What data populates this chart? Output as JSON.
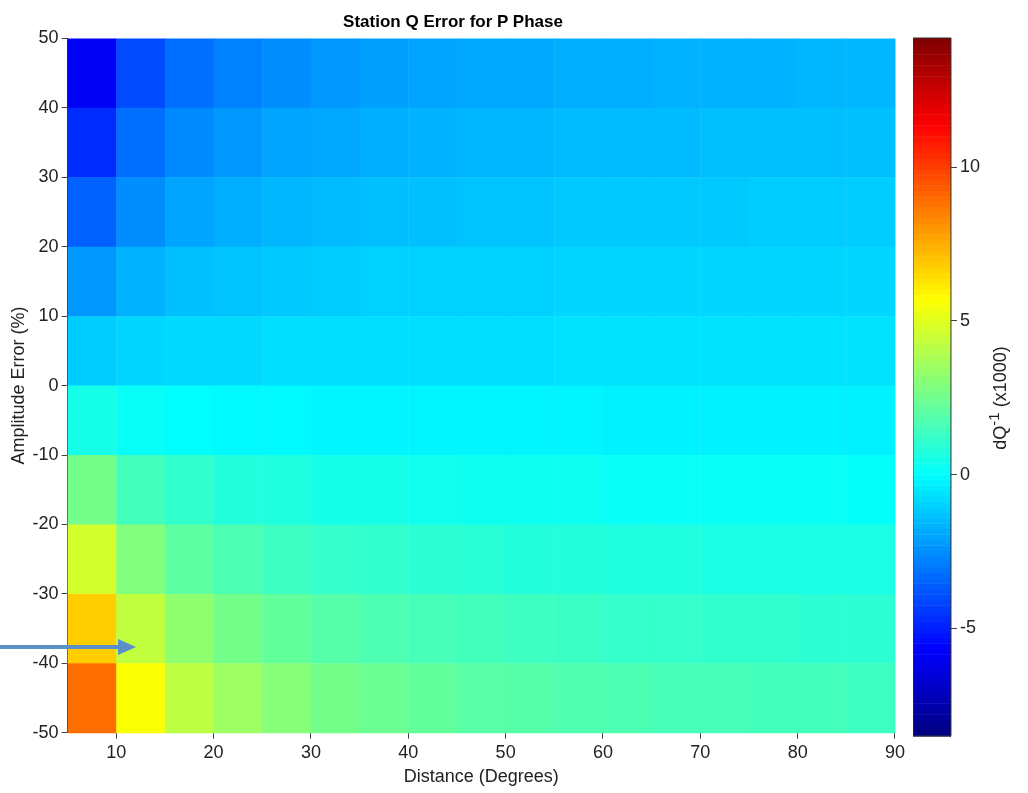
{
  "chart_data": {
    "type": "heatmap",
    "title": "Station Q Error for P Phase",
    "xlabel": "Distance (Degrees)",
    "ylabel": "Amplitude Error (%)",
    "clabel": "dQ$^{-1}$ (x1000)",
    "xlim": [
      5,
      90
    ],
    "xticks": [
      10,
      20,
      30,
      40,
      50,
      60,
      70,
      80,
      90
    ],
    "ylim": [
      -50,
      50
    ],
    "yticks": [
      -50,
      -40,
      -30,
      -20,
      -10,
      0,
      10,
      20,
      30,
      40,
      50
    ],
    "clim": [
      -8.5,
      14.2
    ],
    "cticks": [
      -5,
      0,
      5,
      10
    ],
    "grid": false,
    "cells": [
      [
        -5.9,
        -4.0,
        -3.2,
        -2.8,
        -2.5,
        -2.3,
        -2.1,
        -2.0,
        -1.9,
        -1.9,
        -1.8,
        -1.8,
        -1.7,
        -1.7,
        -1.7,
        -1.6,
        -1.6
      ],
      [
        -4.7,
        -3.2,
        -2.6,
        -2.3,
        -2.0,
        -1.9,
        -1.8,
        -1.7,
        -1.6,
        -1.6,
        -1.5,
        -1.5,
        -1.5,
        -1.4,
        -1.4,
        -1.4,
        -1.4
      ],
      [
        -3.5,
        -2.5,
        -2.0,
        -1.8,
        -1.6,
        -1.5,
        -1.4,
        -1.4,
        -1.3,
        -1.3,
        -1.2,
        -1.2,
        -1.2,
        -1.2,
        -1.1,
        -1.1,
        -1.1
      ],
      [
        -2.3,
        -1.7,
        -1.4,
        -1.3,
        -1.2,
        -1.1,
        -1.0,
        -1.0,
        -1.0,
        -1.0,
        -0.9,
        -0.9,
        -0.9,
        -0.9,
        -0.9,
        -0.9,
        -0.9
      ],
      [
        -1.1,
        -0.9,
        -0.8,
        -0.8,
        -0.7,
        -0.7,
        -0.7,
        -0.7,
        -0.7,
        -0.7,
        -0.6,
        -0.6,
        -0.6,
        -0.6,
        -0.6,
        -0.6,
        -0.6
      ],
      [
        0.5,
        0.2,
        0.0,
        -0.1,
        -0.1,
        -0.2,
        -0.2,
        -0.2,
        -0.2,
        -0.2,
        -0.2,
        -0.3,
        -0.3,
        -0.3,
        -0.3,
        -0.3,
        -0.3
      ],
      [
        2.6,
        1.5,
        1.1,
        0.8,
        0.7,
        0.5,
        0.5,
        0.4,
        0.3,
        0.3,
        0.3,
        0.2,
        0.2,
        0.2,
        0.2,
        0.2,
        0.1
      ],
      [
        4.7,
        2.9,
        2.1,
        1.7,
        1.4,
        1.2,
        1.1,
        1.0,
        0.9,
        0.8,
        0.8,
        0.7,
        0.7,
        0.6,
        0.6,
        0.6,
        0.6
      ],
      [
        6.8,
        4.3,
        3.2,
        2.6,
        2.2,
        1.9,
        1.7,
        1.6,
        1.5,
        1.4,
        1.3,
        1.2,
        1.2,
        1.1,
        1.1,
        1.0,
        1.0
      ],
      [
        8.9,
        5.6,
        4.2,
        3.5,
        3.0,
        2.6,
        2.4,
        2.2,
        2.0,
        1.9,
        1.8,
        1.7,
        1.6,
        1.6,
        1.5,
        1.5,
        1.4
      ]
    ]
  }
}
